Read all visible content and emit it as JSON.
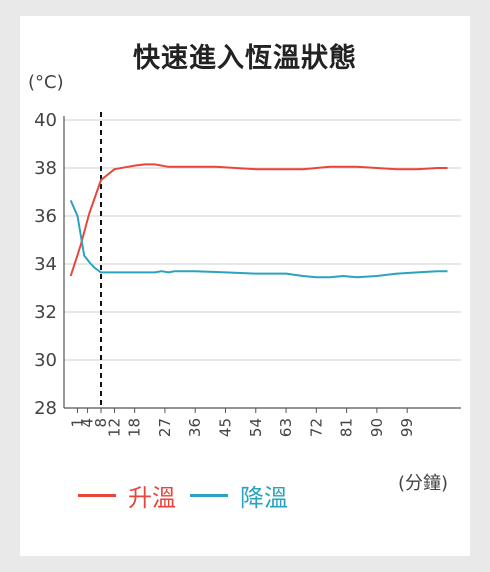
{
  "title": "快速進入恆溫狀態",
  "y_unit": "(°C)",
  "x_unit": "(分鐘)",
  "colors": {
    "rise": "#e8463c",
    "fall": "#2aa3bf",
    "grid": "#cfcfcf",
    "axis": "#555555",
    "marker": "#111111"
  },
  "chart_data": {
    "type": "line",
    "title": "快速進入恆溫狀態",
    "ylabel": "(°C)",
    "xlabel": "(分鐘)",
    "ylim": [
      28,
      40
    ],
    "yticks": [
      28,
      30,
      32,
      34,
      36,
      38,
      40
    ],
    "xlim": [
      -3,
      115
    ],
    "xticks": [
      "1",
      "4",
      "8",
      "12",
      "18",
      "27",
      "36",
      "45",
      "54",
      "63",
      "72",
      "81",
      "90",
      "99"
    ],
    "xtick_values": [
      1,
      4,
      8,
      12,
      18,
      27,
      36,
      45,
      54,
      63,
      72,
      81,
      90,
      99
    ],
    "vline_x": 8,
    "vline_style": "dashed",
    "grid": true,
    "legend_position": "bottom-left",
    "series": [
      {
        "name": "升溫",
        "color": "#e8463c",
        "x": [
          -1,
          2,
          4.5,
          8,
          12,
          16,
          18,
          21,
          24,
          28,
          32,
          36,
          42,
          48,
          54,
          60,
          68,
          76,
          84,
          90,
          96,
          102,
          108,
          111
        ],
        "y": [
          33.5,
          34.8,
          36.1,
          37.5,
          37.95,
          38.05,
          38.1,
          38.15,
          38.15,
          38.05,
          38.05,
          38.05,
          38.05,
          38.0,
          37.95,
          37.95,
          37.95,
          38.05,
          38.05,
          38.0,
          37.95,
          37.95,
          38.0,
          38.0
        ]
      },
      {
        "name": "降溫",
        "color": "#2aa3bf",
        "x": [
          -1,
          1,
          3,
          5,
          6,
          8,
          12,
          20,
          22,
          24,
          26,
          28,
          30,
          36,
          45,
          54,
          63,
          68,
          72,
          76,
          80,
          84,
          90,
          96,
          102,
          108,
          111
        ],
        "y": [
          36.65,
          36.0,
          34.35,
          34.0,
          33.85,
          33.65,
          33.65,
          33.65,
          33.65,
          33.65,
          33.7,
          33.65,
          33.7,
          33.7,
          33.65,
          33.6,
          33.6,
          33.5,
          33.45,
          33.45,
          33.5,
          33.45,
          33.5,
          33.6,
          33.65,
          33.7,
          33.7
        ]
      }
    ]
  }
}
